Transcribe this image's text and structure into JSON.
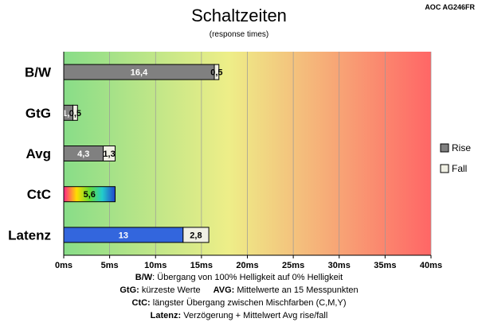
{
  "chart_data": {
    "type": "bar",
    "orientation": "horizontal",
    "stacked": true,
    "title": "Schaltzeiten",
    "subtitle": "(response times)",
    "model": "AOC AG246FR",
    "categories": [
      "B/W",
      "GtG",
      "Avg",
      "CtC",
      "Latenz"
    ],
    "series": [
      {
        "name": "Rise",
        "values": [
          16.4,
          1.0,
          4.3,
          5.6,
          13
        ],
        "labels": [
          "16,4",
          "1,0",
          "4,3",
          "5,6",
          "13"
        ],
        "color": "#808080"
      },
      {
        "name": "Fall",
        "values": [
          0.5,
          0.5,
          1.3,
          null,
          2.8
        ],
        "labels": [
          "0,5",
          "0,5",
          "1,3",
          "",
          "2,8"
        ],
        "color": "#f0f0e4"
      }
    ],
    "special_bars": {
      "CtC": "rainbow-gradient",
      "Latenz": "#3366dd"
    },
    "xlim": [
      0,
      40
    ],
    "xticks": [
      0,
      5,
      10,
      15,
      20,
      25,
      30,
      35,
      40
    ],
    "xtick_labels": [
      "0ms",
      "5ms",
      "10ms",
      "15ms",
      "20ms",
      "25ms",
      "30ms",
      "35ms",
      "40ms"
    ],
    "background_gradient": [
      "#88dd88",
      "#eeee88",
      "#ff6666"
    ],
    "grid": true,
    "legend_position": "right",
    "notes": [
      {
        "label": "B/W",
        "text": ":  Übergang von 100% Helligkeit auf 0% Helligkeit"
      },
      {
        "label": "GtG:",
        "text": " kürzeste  Werte",
        "label2": "AVG:",
        "text2": " Mittelwerte  an 15 Messpunkten"
      },
      {
        "label": "CtC:",
        "text": " längster Übergang  zwischen Mischfarben  (C,M,Y)"
      },
      {
        "label": "Latenz:",
        "text": " Verzögerung  + Mittelwert Avg rise/fall"
      }
    ]
  }
}
